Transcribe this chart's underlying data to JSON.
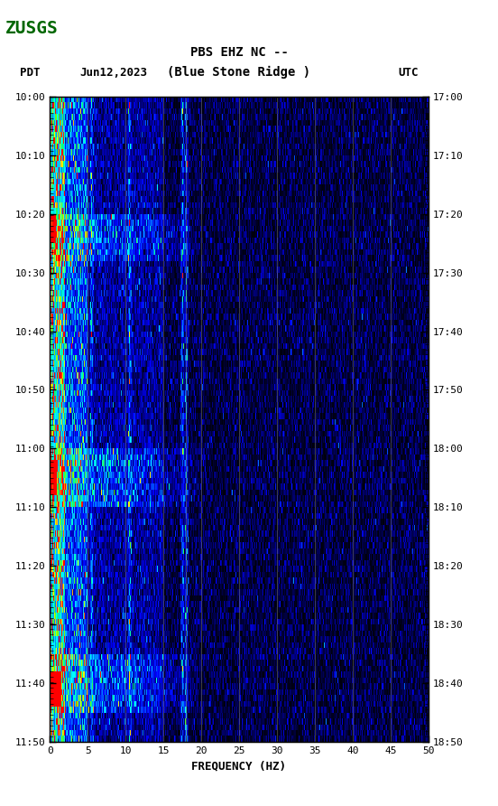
{
  "title_line1": "PBS EHZ NC --",
  "title_line2": "(Blue Stone Ridge )",
  "pdt_label": "PDT",
  "date_label": "Jun12,2023",
  "utc_label": "UTC",
  "freq_min": 0,
  "freq_max": 50,
  "freq_label": "FREQUENCY (HZ)",
  "time_left_start": "10:00",
  "time_left_end": "11:50",
  "time_right_start": "17:00",
  "time_right_end": "18:50",
  "left_yticks": [
    "10:00",
    "10:10",
    "10:20",
    "10:30",
    "10:40",
    "10:50",
    "11:00",
    "11:10",
    "11:20",
    "11:30",
    "11:40",
    "11:50"
  ],
  "right_yticks": [
    "17:00",
    "17:10",
    "17:20",
    "17:30",
    "17:40",
    "17:50",
    "18:00",
    "18:10",
    "18:20",
    "18:30",
    "18:40",
    "18:50"
  ],
  "xticks": [
    0,
    5,
    10,
    15,
    20,
    25,
    30,
    35,
    40,
    45,
    50
  ],
  "background_color": "#ffffff",
  "plot_bg": "#000080",
  "fig_width": 5.52,
  "fig_height": 8.92,
  "vertical_lines_freq": [
    5,
    10,
    15,
    18,
    20,
    25,
    30,
    35,
    40,
    45
  ],
  "vertical_line_color": "#808060",
  "seed": 42,
  "num_time_steps": 110,
  "num_freq_bins": 500
}
